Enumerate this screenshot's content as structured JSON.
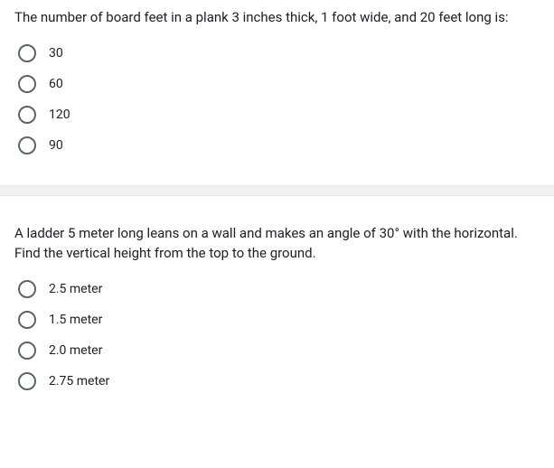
{
  "questions": [
    {
      "text": "The number of board feet in a plank 3 inches thick, 1 foot wide, and 20 feet long is:",
      "options": [
        "30",
        "60",
        "120",
        "90"
      ]
    },
    {
      "text": "A ladder 5 meter long leans on a wall and makes an angle of 30° with the horizontal. Find the vertical height from the top to the ground.",
      "options": [
        "2.5 meter",
        "1.5 meter",
        "2.0 meter",
        "2.75 meter"
      ]
    }
  ],
  "colors": {
    "text": "#202124",
    "radio_border": "#5f6368",
    "divider_bg": "#f1f1f1",
    "background": "#ffffff"
  },
  "typography": {
    "question_fontsize": 15,
    "option_fontsize": 14,
    "font_family": "Roboto, Arial, sans-serif"
  }
}
